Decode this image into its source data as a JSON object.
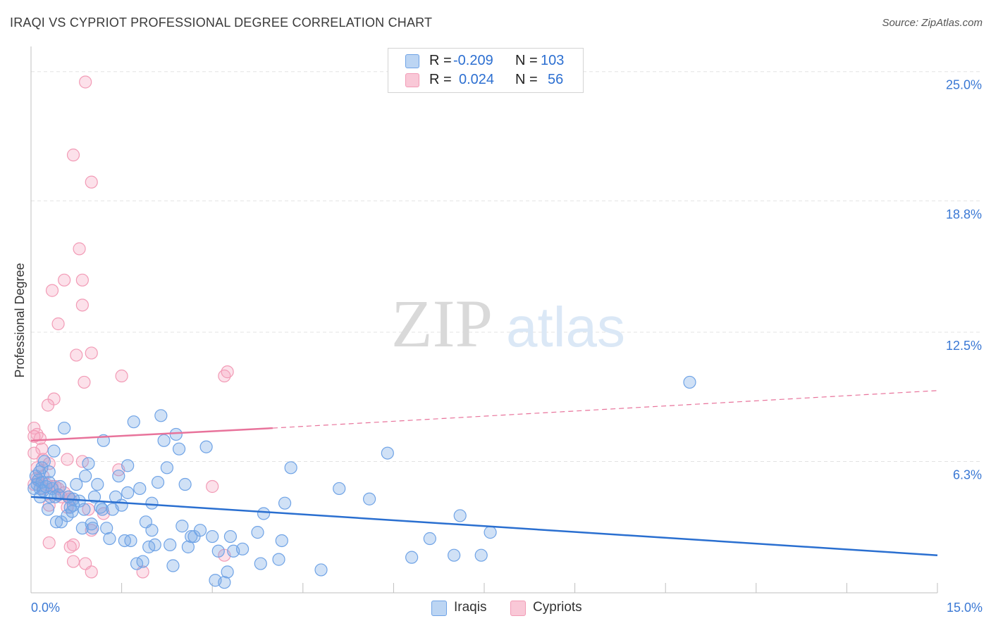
{
  "header": {
    "title": "IRAQI VS CYPRIOT PROFESSIONAL DEGREE CORRELATION CHART",
    "source": "Source: ZipAtlas.com"
  },
  "watermark": {
    "zip": "ZIP",
    "atlas": "atlas"
  },
  "legend": {
    "rows": [
      {
        "r_label": "R =",
        "r_value": "-0.209",
        "n_label": "N =",
        "n_value": "103",
        "color": "#6fa3e6"
      },
      {
        "r_label": "R =",
        "r_value": "0.024",
        "n_label": "N =",
        "n_value": "56",
        "color": "#f29bb6"
      }
    ]
  },
  "bottom_legend": {
    "series1": "Iraqis",
    "series2": "Cypriots"
  },
  "chart_data": {
    "type": "scatter",
    "title": "IRAQI VS CYPRIOT PROFESSIONAL DEGREE CORRELATION CHART",
    "xlabel": "",
    "ylabel": "Professional Degree",
    "xlim": [
      0,
      15
    ],
    "ylim": [
      0,
      25.8
    ],
    "x_tick_labels": [
      "0.0%",
      "15.0%"
    ],
    "y_ticks": [
      6.3,
      12.5,
      18.8,
      25.0
    ],
    "y_tick_labels": [
      "6.3%",
      "12.5%",
      "18.8%",
      "25.0%"
    ],
    "grid": true,
    "colors": {
      "iraqis_fill": "rgba(120,170,230,0.35)",
      "iraqis_stroke": "#6fa3e6",
      "iraqis_line": "#2a6fd0",
      "cypriots_fill": "rgba(245,170,195,0.35)",
      "cypriots_stroke": "#f29bb6",
      "cypriots_line": "#e8739b",
      "tick_color": "#3a78d4"
    },
    "trend_lines": [
      {
        "series": "Iraqis",
        "x": [
          0,
          15
        ],
        "y": [
          4.6,
          1.8
        ],
        "style": "solid"
      },
      {
        "series": "Cypriots",
        "x": [
          0,
          4
        ],
        "y": [
          7.3,
          7.9
        ],
        "style": "solid"
      },
      {
        "series": "Cypriots",
        "x": [
          4,
          15
        ],
        "y": [
          7.9,
          9.7
        ],
        "style": "dashed"
      }
    ],
    "series": [
      {
        "name": "Iraqis",
        "points": [
          [
            0.08,
            5.6
          ],
          [
            0.1,
            5.2
          ],
          [
            0.12,
            5.4
          ],
          [
            0.15,
            5.0
          ],
          [
            0.18,
            5.3
          ],
          [
            0.2,
            4.9
          ],
          [
            0.22,
            6.3
          ],
          [
            0.25,
            5.1
          ],
          [
            0.28,
            4.0
          ],
          [
            0.3,
            5.8
          ],
          [
            0.35,
            5.0
          ],
          [
            0.38,
            6.8
          ],
          [
            0.42,
            3.4
          ],
          [
            0.45,
            4.7
          ],
          [
            0.48,
            5.1
          ],
          [
            0.55,
            7.9
          ],
          [
            0.6,
            3.7
          ],
          [
            0.65,
            4.1
          ],
          [
            0.7,
            4.5
          ],
          [
            0.75,
            5.2
          ],
          [
            0.8,
            4.4
          ],
          [
            0.85,
            3.1
          ],
          [
            0.9,
            5.6
          ],
          [
            0.95,
            6.2
          ],
          [
            1.0,
            3.3
          ],
          [
            1.05,
            4.6
          ],
          [
            1.1,
            5.2
          ],
          [
            1.15,
            4.1
          ],
          [
            1.2,
            7.3
          ],
          [
            1.25,
            3.1
          ],
          [
            1.3,
            2.6
          ],
          [
            1.35,
            4.0
          ],
          [
            1.4,
            4.6
          ],
          [
            1.45,
            5.6
          ],
          [
            1.5,
            4.2
          ],
          [
            1.55,
            2.5
          ],
          [
            1.6,
            6.1
          ],
          [
            1.65,
            2.5
          ],
          [
            1.7,
            8.2
          ],
          [
            1.75,
            1.4
          ],
          [
            1.8,
            5.0
          ],
          [
            1.85,
            1.5
          ],
          [
            1.9,
            3.4
          ],
          [
            1.95,
            2.2
          ],
          [
            2.0,
            4.3
          ],
          [
            2.05,
            2.3
          ],
          [
            2.1,
            5.3
          ],
          [
            2.15,
            8.5
          ],
          [
            2.2,
            7.3
          ],
          [
            2.25,
            6.0
          ],
          [
            2.3,
            2.3
          ],
          [
            2.35,
            1.3
          ],
          [
            2.4,
            7.6
          ],
          [
            2.45,
            6.9
          ],
          [
            2.5,
            3.2
          ],
          [
            2.55,
            5.2
          ],
          [
            2.6,
            2.2
          ],
          [
            2.65,
            2.7
          ],
          [
            2.7,
            2.7
          ],
          [
            2.8,
            3.0
          ],
          [
            2.9,
            7.0
          ],
          [
            3.0,
            2.7
          ],
          [
            3.05,
            0.6
          ],
          [
            3.1,
            2.0
          ],
          [
            3.2,
            0.5
          ],
          [
            3.25,
            1.0
          ],
          [
            3.3,
            2.7
          ],
          [
            3.35,
            2.0
          ],
          [
            3.5,
            2.1
          ],
          [
            3.75,
            2.9
          ],
          [
            3.8,
            1.4
          ],
          [
            3.85,
            3.8
          ],
          [
            4.1,
            1.6
          ],
          [
            4.15,
            2.5
          ],
          [
            4.2,
            4.3
          ],
          [
            4.3,
            6.0
          ],
          [
            4.8,
            1.1
          ],
          [
            5.1,
            5.0
          ],
          [
            5.6,
            4.5
          ],
          [
            5.9,
            6.7
          ],
          [
            6.3,
            1.7
          ],
          [
            6.6,
            2.6
          ],
          [
            7.0,
            1.8
          ],
          [
            7.1,
            3.7
          ],
          [
            7.45,
            1.8
          ],
          [
            7.6,
            2.9
          ],
          [
            10.9,
            10.1
          ],
          [
            0.05,
            5.0
          ],
          [
            0.14,
            5.8
          ],
          [
            0.32,
            4.6
          ],
          [
            0.5,
            3.4
          ],
          [
            0.68,
            3.9
          ],
          [
            0.88,
            4.0
          ],
          [
            1.02,
            3.1
          ],
          [
            1.18,
            4.0
          ],
          [
            0.7,
            4.2
          ],
          [
            0.62,
            4.6
          ],
          [
            0.4,
            4.6
          ],
          [
            0.3,
            5.3
          ],
          [
            0.18,
            6.0
          ],
          [
            1.6,
            4.8
          ],
          [
            2.0,
            3.0
          ],
          [
            0.15,
            4.6
          ]
        ]
      },
      {
        "name": "Cypriots",
        "points": [
          [
            0.9,
            24.5
          ],
          [
            0.7,
            21.0
          ],
          [
            1.0,
            19.7
          ],
          [
            0.8,
            16.5
          ],
          [
            0.55,
            15.0
          ],
          [
            0.85,
            15.0
          ],
          [
            0.35,
            14.5
          ],
          [
            0.85,
            13.8
          ],
          [
            0.45,
            12.9
          ],
          [
            1.0,
            11.5
          ],
          [
            0.75,
            11.4
          ],
          [
            0.88,
            10.1
          ],
          [
            1.5,
            10.4
          ],
          [
            3.2,
            10.4
          ],
          [
            3.25,
            10.6
          ],
          [
            0.38,
            9.3
          ],
          [
            0.28,
            9.0
          ],
          [
            0.05,
            7.9
          ],
          [
            0.1,
            7.6
          ],
          [
            0.15,
            7.4
          ],
          [
            0.05,
            7.5
          ],
          [
            0.18,
            6.9
          ],
          [
            0.05,
            6.7
          ],
          [
            0.2,
            6.4
          ],
          [
            0.3,
            6.2
          ],
          [
            0.6,
            6.4
          ],
          [
            0.85,
            6.3
          ],
          [
            1.45,
            5.9
          ],
          [
            0.1,
            5.5
          ],
          [
            0.2,
            5.6
          ],
          [
            0.25,
            5.2
          ],
          [
            0.35,
            5.1
          ],
          [
            0.45,
            5.0
          ],
          [
            0.55,
            4.8
          ],
          [
            0.62,
            4.6
          ],
          [
            0.05,
            5.2
          ],
          [
            3.0,
            5.1
          ],
          [
            0.1,
            6.0
          ],
          [
            0.2,
            5.0
          ],
          [
            0.4,
            5.1
          ],
          [
            0.5,
            4.6
          ],
          [
            0.65,
            4.5
          ],
          [
            0.3,
            4.2
          ],
          [
            0.6,
            4.1
          ],
          [
            0.95,
            4.0
          ],
          [
            1.2,
            3.8
          ],
          [
            1.0,
            3.0
          ],
          [
            0.3,
            2.4
          ],
          [
            0.7,
            2.3
          ],
          [
            0.65,
            2.2
          ],
          [
            0.7,
            1.5
          ],
          [
            0.9,
            1.4
          ],
          [
            1.0,
            1.0
          ],
          [
            1.85,
            1.0
          ],
          [
            3.2,
            1.8
          ],
          [
            0.12,
            5.4
          ]
        ]
      }
    ]
  }
}
